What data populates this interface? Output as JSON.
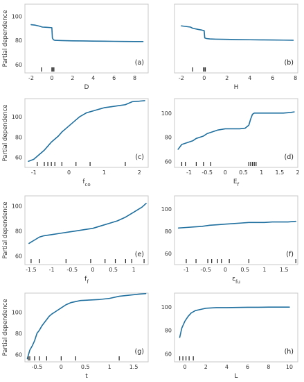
{
  "figure": {
    "ylabel": "Partial dependence"
  },
  "chart_data": [
    {
      "type": "line",
      "panel": "(a)",
      "xlabel": "D",
      "ylabel": "Partial dependence",
      "xlim": [
        -2.6,
        9.3
      ],
      "ylim": [
        53,
        110
      ],
      "xticks": [
        -2,
        0,
        2,
        4,
        6,
        8
      ],
      "yticks": [
        60,
        80,
        100
      ],
      "series": [
        {
          "x": [
            -2.0,
            -1.6,
            -1.2,
            -1.0,
            -0.9,
            -0.5,
            0.0,
            0.05,
            0.15,
            0.3,
            1.0,
            2.0,
            3.0,
            4.0,
            5.0,
            6.0,
            7.0,
            8.0,
            8.8
          ],
          "y": [
            93,
            92.6,
            91.8,
            91.2,
            91.0,
            90.8,
            90.5,
            82,
            80.5,
            80.0,
            79.8,
            79.6,
            79.5,
            79.4,
            79.3,
            79.2,
            79.1,
            79.0,
            79.0
          ]
        }
      ],
      "rug": [
        -1.0,
        0.0,
        0.1,
        0.2
      ]
    },
    {
      "type": "line",
      "panel": "(b)",
      "xlabel": "H",
      "ylabel": "",
      "xlim": [
        -2.6,
        8.2
      ],
      "ylim": [
        53,
        110
      ],
      "xticks": [
        -2,
        0,
        2,
        4,
        6,
        8
      ],
      "yticks": [],
      "series": [
        {
          "x": [
            -2.0,
            -1.6,
            -1.2,
            -1.0,
            -0.5,
            -0.2,
            0.0,
            0.05,
            0.2,
            0.5,
            1.0,
            2.0,
            3.0,
            4.0,
            5.0,
            6.0,
            7.0,
            7.8
          ],
          "y": [
            92,
            91.5,
            91.0,
            90.0,
            89.0,
            88.5,
            88.0,
            82,
            81.5,
            81.2,
            81.0,
            80.8,
            80.6,
            80.5,
            80.4,
            80.3,
            80.2,
            80.1
          ]
        }
      ],
      "rug": [
        -1.0,
        -0.05,
        0.0,
        0.1
      ]
    },
    {
      "type": "line",
      "panel": "(c)",
      "xlabel": "f_co",
      "ylabel": "Partial dependence",
      "xlim": [
        -1.25,
        2.25
      ],
      "ylim": [
        50,
        118
      ],
      "xticks": [
        -1,
        0,
        1,
        2
      ],
      "yticks": [
        60,
        80,
        100
      ],
      "series": [
        {
          "x": [
            -1.15,
            -1.0,
            -0.9,
            -0.8,
            -0.7,
            -0.6,
            -0.5,
            -0.4,
            -0.3,
            -0.2,
            -0.1,
            0.0,
            0.1,
            0.2,
            0.3,
            0.4,
            0.5,
            0.6,
            0.7,
            0.8,
            0.9,
            1.0,
            1.2,
            1.4,
            1.6,
            1.8,
            2.0,
            2.15
          ],
          "y": [
            56,
            58,
            61,
            64,
            67,
            71,
            75,
            78,
            81,
            85,
            88,
            91,
            94,
            97,
            100,
            102,
            104,
            105,
            106,
            107,
            108,
            109,
            110,
            111,
            112,
            115,
            115.5,
            116
          ]
        }
      ],
      "rug": [
        -0.9,
        -0.7,
        -0.6,
        -0.5,
        -0.4,
        -0.2,
        0.2,
        0.6,
        1.6
      ]
    },
    {
      "type": "line",
      "panel": "(d)",
      "xlabel": "E_f",
      "ylabel": "",
      "xlim": [
        -1.4,
        2.0
      ],
      "ylim": [
        55,
        112
      ],
      "xticks": [
        -1.0,
        -0.5,
        0.0,
        0.5,
        1.0,
        1.5,
        2.0
      ],
      "yticks": [
        60,
        80,
        100
      ],
      "series": [
        {
          "x": [
            -1.3,
            -1.2,
            -1.1,
            -1.0,
            -0.9,
            -0.8,
            -0.7,
            -0.6,
            -0.5,
            -0.4,
            -0.3,
            -0.2,
            -0.1,
            0.0,
            0.2,
            0.4,
            0.55,
            0.65,
            0.7,
            0.75,
            0.8,
            0.9,
            1.0,
            1.2,
            1.4,
            1.6,
            1.8,
            1.9
          ],
          "y": [
            70,
            74,
            75,
            76,
            77,
            79,
            80,
            81,
            83,
            84,
            85,
            86,
            86.5,
            87,
            87,
            87,
            87.5,
            90,
            95,
            99,
            100,
            100,
            100,
            100,
            100,
            100,
            100.5,
            101
          ]
        }
      ],
      "rug": [
        -1.2,
        -1.1,
        -0.8,
        -0.6,
        -0.4,
        0.65,
        0.7,
        0.75,
        0.8,
        0.85
      ]
    },
    {
      "type": "line",
      "panel": "(e)",
      "xlabel": "f_f",
      "ylabel": "Partial dependence",
      "xlim": [
        -1.65,
        1.35
      ],
      "ylim": [
        53,
        108
      ],
      "xticks": [
        -1.5,
        -1.0,
        -0.5,
        0.0,
        0.5,
        1.0
      ],
      "yticks": [
        60,
        80,
        100
      ],
      "series": [
        {
          "x": [
            -1.55,
            -1.5,
            -1.4,
            -1.3,
            -1.2,
            -1.0,
            -0.8,
            -0.6,
            -0.4,
            -0.2,
            0.0,
            0.2,
            0.4,
            0.6,
            0.8,
            1.0,
            1.1,
            1.2,
            1.3
          ],
          "y": [
            70,
            71,
            73,
            75,
            76,
            77,
            78,
            79,
            80,
            81,
            82,
            84,
            86,
            88,
            91,
            95,
            97,
            99,
            102
          ]
        }
      ],
      "rug": [
        -1.5,
        -1.3,
        -0.65,
        -0.05,
        0.3,
        0.55,
        0.8,
        0.95,
        1.25
      ]
    },
    {
      "type": "line",
      "panel": "(f)",
      "xlabel": "ε_fu",
      "ylabel": "",
      "xlim": [
        -1.3,
        1.85
      ],
      "ylim": [
        50,
        112
      ],
      "xticks": [
        -1.0,
        -0.5,
        0.0,
        0.5,
        1.0,
        1.5
      ],
      "yticks": [
        60,
        80,
        100
      ],
      "series": [
        {
          "x": [
            -1.2,
            -1.0,
            -0.8,
            -0.6,
            -0.4,
            -0.2,
            0.0,
            0.2,
            0.4,
            0.6,
            0.8,
            1.0,
            1.2,
            1.4,
            1.6,
            1.8
          ],
          "y": [
            83,
            83.5,
            84,
            84.5,
            85.5,
            86,
            86.5,
            87,
            87.5,
            88,
            88,
            88,
            88.5,
            88.5,
            88.5,
            89
          ]
        }
      ],
      "rug": [
        -1.0,
        -0.75,
        -0.45,
        -0.35,
        -0.2,
        -0.1,
        0.1,
        0.6,
        1.8
      ]
    },
    {
      "type": "line",
      "panel": "(g)",
      "xlabel": "t",
      "ylabel": "Partial dependence",
      "xlim": [
        -0.75,
        1.8
      ],
      "ylim": [
        53,
        118
      ],
      "xticks": [
        -0.5,
        0.0,
        0.5,
        1.0,
        1.5
      ],
      "yticks": [
        60,
        80,
        100
      ],
      "series": [
        {
          "x": [
            -0.7,
            -0.65,
            -0.6,
            -0.55,
            -0.5,
            -0.45,
            -0.4,
            -0.35,
            -0.3,
            -0.25,
            -0.2,
            -0.1,
            0.0,
            0.1,
            0.2,
            0.3,
            0.4,
            0.6,
            0.8,
            1.0,
            1.2,
            1.4,
            1.6,
            1.75
          ],
          "y": [
            56,
            64,
            68,
            73,
            80,
            83,
            87,
            90,
            93,
            96,
            98,
            101,
            104,
            107,
            109,
            110,
            111,
            111.5,
            112,
            113,
            115,
            116,
            117,
            117.5
          ]
        }
      ],
      "rug": [
        -0.68,
        -0.65,
        -0.55,
        -0.45,
        -0.3,
        0.0,
        0.3,
        1.2
      ]
    },
    {
      "type": "line",
      "panel": "(h)",
      "xlabel": "L",
      "ylabel": "",
      "xlim": [
        -1.0,
        10.8
      ],
      "ylim": [
        53,
        112
      ],
      "xticks": [
        0,
        2,
        4,
        6,
        8,
        10
      ],
      "yticks": [
        60,
        80,
        100
      ],
      "series": [
        {
          "x": [
            -0.5,
            -0.3,
            0.0,
            0.3,
            0.6,
            1.0,
            1.5,
            2.0,
            3.0,
            4.0,
            5.0,
            6.0,
            7.0,
            8.0,
            9.0,
            10.0
          ],
          "y": [
            74,
            82,
            88,
            92,
            95,
            97,
            98,
            99,
            99.5,
            99.5,
            99.7,
            99.8,
            99.8,
            100,
            100,
            100
          ]
        }
      ],
      "rug": [
        -0.5,
        -0.2,
        0.1,
        0.4,
        0.8
      ]
    }
  ]
}
